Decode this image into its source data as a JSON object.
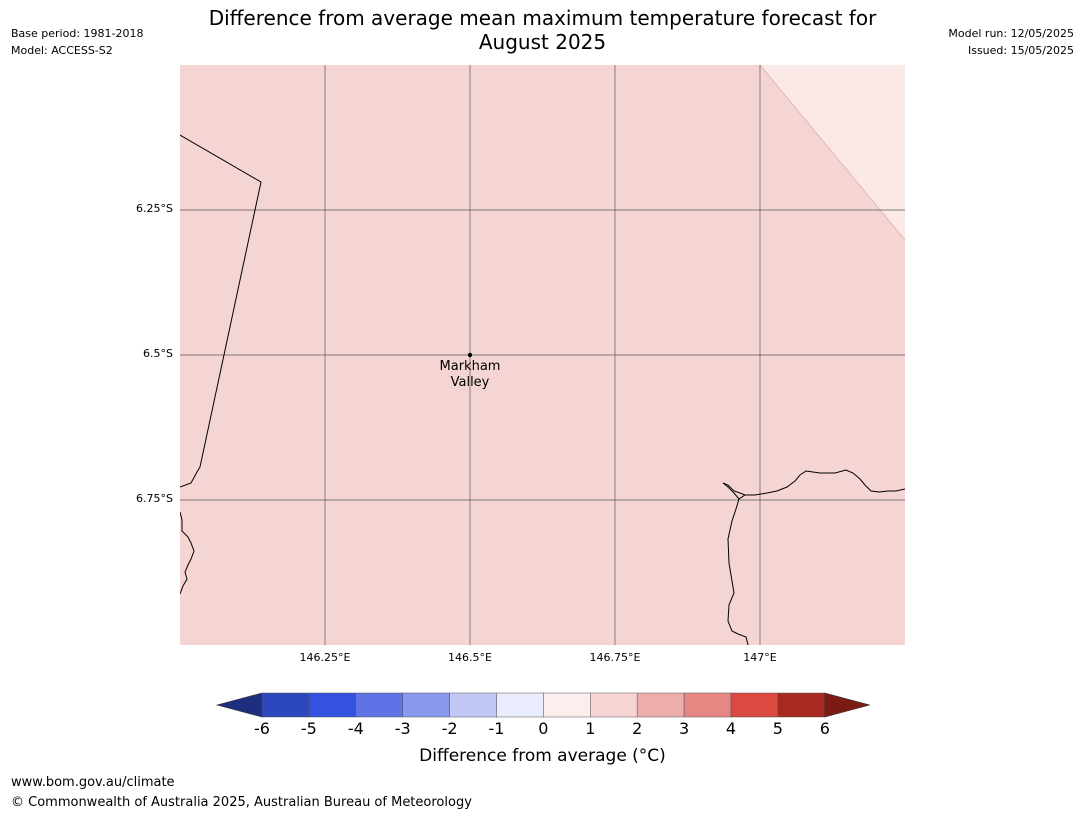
{
  "title": {
    "line1": "Difference from average mean maximum temperature forecast for",
    "line2": "August 2025"
  },
  "meta_left": {
    "base_period": "Base period: 1981-2018",
    "model": "Model: ACCESS-S2"
  },
  "meta_right": {
    "model_run": "Model run: 12/05/2025",
    "issued": "Issued: 15/05/2025"
  },
  "map": {
    "lat_labels": [
      "6.25°S",
      "6.5°S",
      "6.75°S"
    ],
    "lon_labels": [
      "146.25°E",
      "146.5°E",
      "146.75°E",
      "147°E"
    ],
    "place": {
      "name_line1": "Markham",
      "name_line2": "Valley",
      "lon": 146.5,
      "lat": -6.5
    },
    "main_fill": "#f5d5d3",
    "corner_fill": "#fbe9e7"
  },
  "colorbar": {
    "ticks": [
      "-6",
      "-5",
      "-4",
      "-3",
      "-2",
      "-1",
      "0",
      "1",
      "2",
      "3",
      "4",
      "5",
      "6"
    ],
    "colors": [
      "#253494",
      "#2c47bf",
      "#3352e0",
      "#5e73e6",
      "#8898ed",
      "#c2c8f5",
      "#eaedfd",
      "#fdedec",
      "#f6d4d3",
      "#eeaeab",
      "#e68783",
      "#da4a40",
      "#a8291f"
    ],
    "under_color": "#1e2e7e",
    "over_color": "#7a1b15",
    "label": "Difference from average (°C)"
  },
  "footer": {
    "url": "www.bom.gov.au/climate",
    "copyright": "© Commonwealth of Australia 2025, Australian Bureau of Meteorology"
  }
}
